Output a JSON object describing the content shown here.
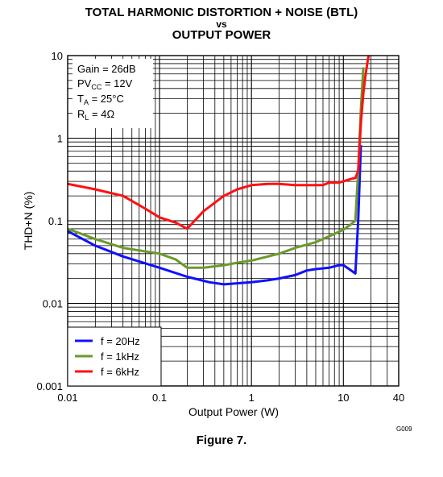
{
  "chart_data": {
    "type": "line",
    "title_line1": "TOTAL HARMONIC DISTORTION + NOISE (BTL)",
    "title_line2": "vs",
    "title_line3": "OUTPUT POWER",
    "xlabel": "Output Power (W)",
    "ylabel": "THD+N (%)",
    "xscale": "log",
    "yscale": "log",
    "xlim": [
      0.01,
      40
    ],
    "ylim": [
      0.001,
      10
    ],
    "grid": true,
    "x_ticks": [
      "0.01",
      "0.1",
      "1",
      "10",
      "40"
    ],
    "y_ticks": [
      "0.001",
      "0.01",
      "0.1",
      "1",
      "10"
    ],
    "conditions": [
      "Gain = 26dB",
      "PV",
      "CC",
      " = 12V",
      "T",
      "A",
      " = 25°C",
      "R",
      "L",
      " = 4Ω"
    ],
    "legend_position": "bottom-left",
    "series": [
      {
        "name": "f = 20Hz",
        "color": "#1010ff",
        "x": [
          0.01,
          0.02,
          0.04,
          0.1,
          0.2,
          0.35,
          0.5,
          0.7,
          1,
          1.5,
          2,
          3,
          4,
          5,
          7,
          9,
          10,
          11,
          13.5,
          14.5,
          15.5
        ],
        "y": [
          0.075,
          0.05,
          0.037,
          0.027,
          0.021,
          0.018,
          0.017,
          0.0175,
          0.018,
          0.019,
          0.02,
          0.022,
          0.025,
          0.026,
          0.027,
          0.029,
          0.029,
          0.027,
          0.023,
          0.1,
          0.8
        ]
      },
      {
        "name": "f = 1kHz",
        "color": "#6a9a2a",
        "x": [
          0.01,
          0.02,
          0.04,
          0.1,
          0.15,
          0.2,
          0.3,
          0.5,
          0.7,
          1,
          2,
          3,
          5,
          7,
          10,
          12,
          13.5,
          14.5,
          15.5,
          16.5
        ],
        "y": [
          0.08,
          0.06,
          0.047,
          0.04,
          0.034,
          0.027,
          0.027,
          0.029,
          0.031,
          0.033,
          0.04,
          0.047,
          0.055,
          0.065,
          0.078,
          0.09,
          0.1,
          0.4,
          2.2,
          7
        ]
      },
      {
        "name": "f = 6kHz",
        "color": "#ff1010",
        "x": [
          0.01,
          0.02,
          0.04,
          0.07,
          0.1,
          0.15,
          0.2,
          0.3,
          0.5,
          0.7,
          1,
          1.5,
          2,
          3,
          5,
          6,
          7,
          8,
          9,
          10,
          12,
          13.5,
          14.5,
          15.5,
          16.5,
          17.5,
          18.5,
          19.5
        ],
        "y": [
          0.28,
          0.24,
          0.2,
          0.14,
          0.11,
          0.095,
          0.08,
          0.13,
          0.2,
          0.24,
          0.27,
          0.28,
          0.28,
          0.27,
          0.27,
          0.27,
          0.29,
          0.29,
          0.29,
          0.3,
          0.32,
          0.33,
          0.4,
          1.5,
          3.5,
          6,
          9,
          12
        ]
      }
    ]
  },
  "figure_label": "Figure 7.",
  "figure_code": "G009"
}
